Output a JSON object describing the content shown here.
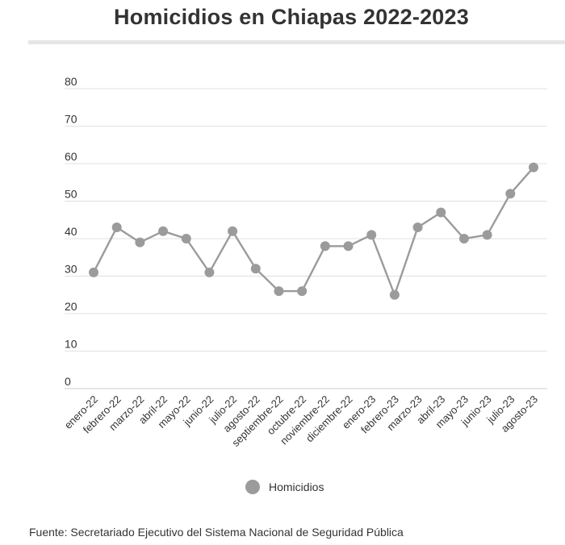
{
  "title": "Homicidios en Chiapas 2022-2023",
  "source": "Fuente: Secretariado Ejecutivo del Sistema Nacional de Seguridad Pública",
  "colors": {
    "series": "#9b9b9b",
    "grid": "#e0e0e0",
    "text": "#333333",
    "rule": "#e6e6e6"
  },
  "chart_data": {
    "type": "line",
    "title": "Homicidios en Chiapas 2022-2023",
    "xlabel": "",
    "ylabel": "",
    "ylim": [
      0,
      80
    ],
    "yticks": [
      "0",
      "10",
      "20",
      "30",
      "40",
      "50",
      "60",
      "70",
      "80"
    ],
    "categories": [
      "enero-22",
      "febrero-22",
      "marzo-22",
      "abril-22",
      "mayo-22",
      "junio-22",
      "julio-22",
      "agosto-22",
      "septiembre-22",
      "octubre-22",
      "noviembre-22",
      "diciembre-22",
      "enero-23",
      "febrero-23",
      "marzo-23",
      "abril-23",
      "mayo-23",
      "junio-23",
      "julio-23",
      "agosto-23"
    ],
    "series": [
      {
        "name": "Homicidios",
        "values": [
          31,
          43,
          39,
          42,
          40,
          31,
          42,
          32,
          26,
          26,
          38,
          38,
          41,
          25,
          43,
          47,
          40,
          41,
          52,
          59
        ]
      }
    ],
    "grid": true,
    "legend": "bottom-center"
  }
}
